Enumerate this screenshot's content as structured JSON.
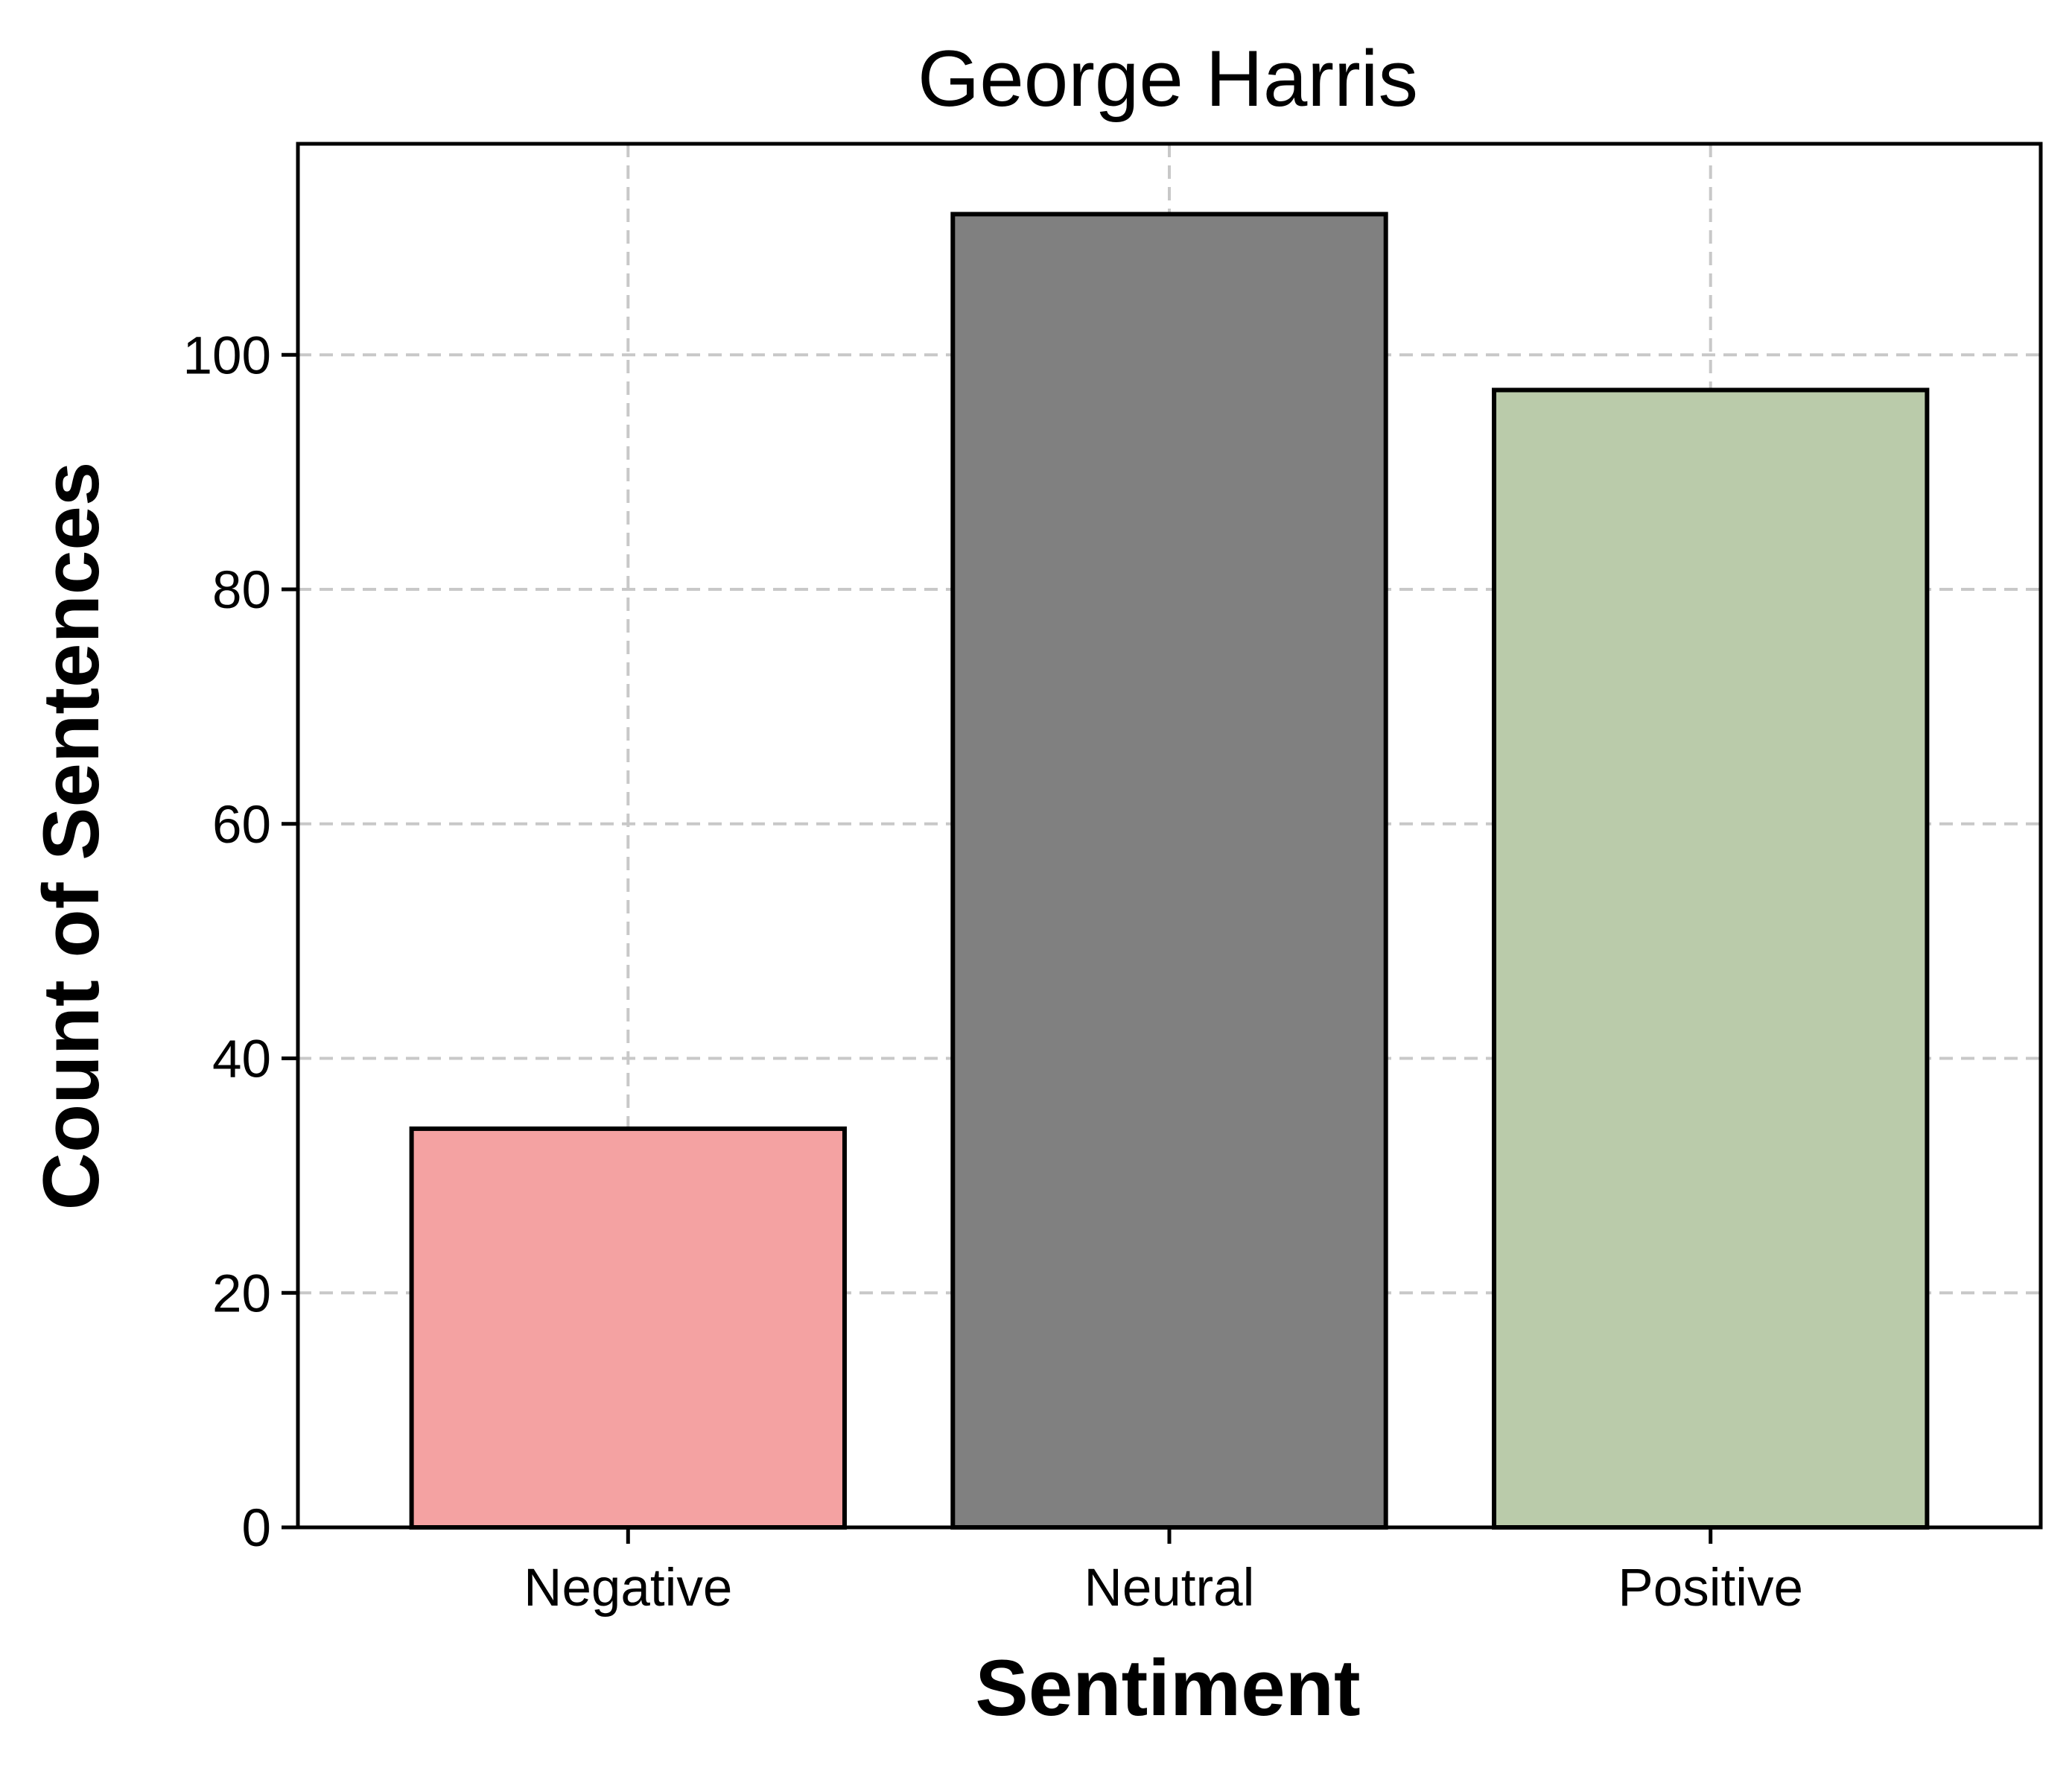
{
  "chart_data": {
    "type": "bar",
    "title": "George Harris",
    "xlabel": "Sentiment",
    "ylabel": "Count of Sentences",
    "categories": [
      "Negative",
      "Neutral",
      "Positive"
    ],
    "values": [
      34,
      112,
      97
    ],
    "colors": [
      "#f4a2a2",
      "#808080",
      "#bacbaa"
    ],
    "edge_color": "#000000",
    "grid_color": "#c8c8c8",
    "ylim": [
      0,
      118
    ],
    "yticks": [
      0,
      20,
      40,
      60,
      80,
      100
    ],
    "ytick_labels": [
      "0",
      "20",
      "40",
      "60",
      "80",
      "100"
    ],
    "grid": true,
    "grid_style": "dashed",
    "legend": "none"
  }
}
